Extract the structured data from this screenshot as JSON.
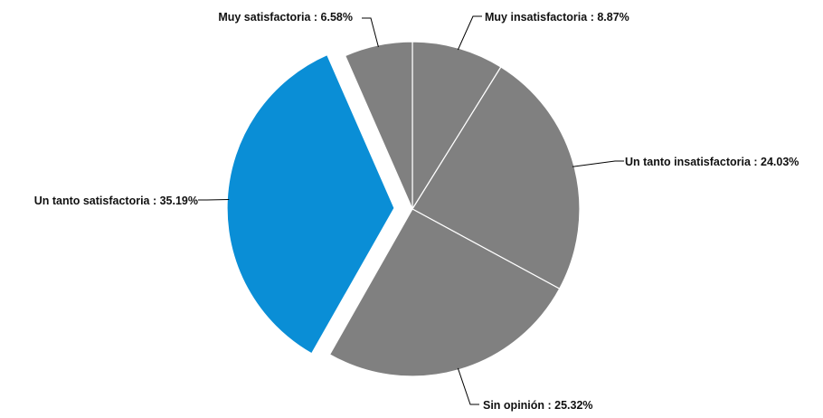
{
  "chart_data": {
    "type": "pie",
    "start_angle_deg": 0,
    "direction": "clockwise",
    "slices": [
      {
        "label": "Muy insatisfactoria : 8.87%",
        "name": "Muy insatisfactoria",
        "value": 8.87,
        "color": "#808080",
        "exploded": false
      },
      {
        "label": "Un tanto insatisfactoria : 24.03%",
        "name": "Un tanto insatisfactoria",
        "value": 24.03,
        "color": "#808080",
        "exploded": false
      },
      {
        "label": "Sin opinión : 25.32%",
        "name": "Sin opinión",
        "value": 25.32,
        "color": "#808080",
        "exploded": false
      },
      {
        "label": "Un tanto satisfactoria : 35.19%",
        "name": "Un tanto satisfactoria",
        "value": 35.19,
        "color": "#0A8ED6",
        "exploded": true
      },
      {
        "label": "Muy satisfactoria : 6.58%",
        "name": "Muy satisfactoria",
        "value": 6.58,
        "color": "#808080",
        "exploded": false
      }
    ]
  }
}
